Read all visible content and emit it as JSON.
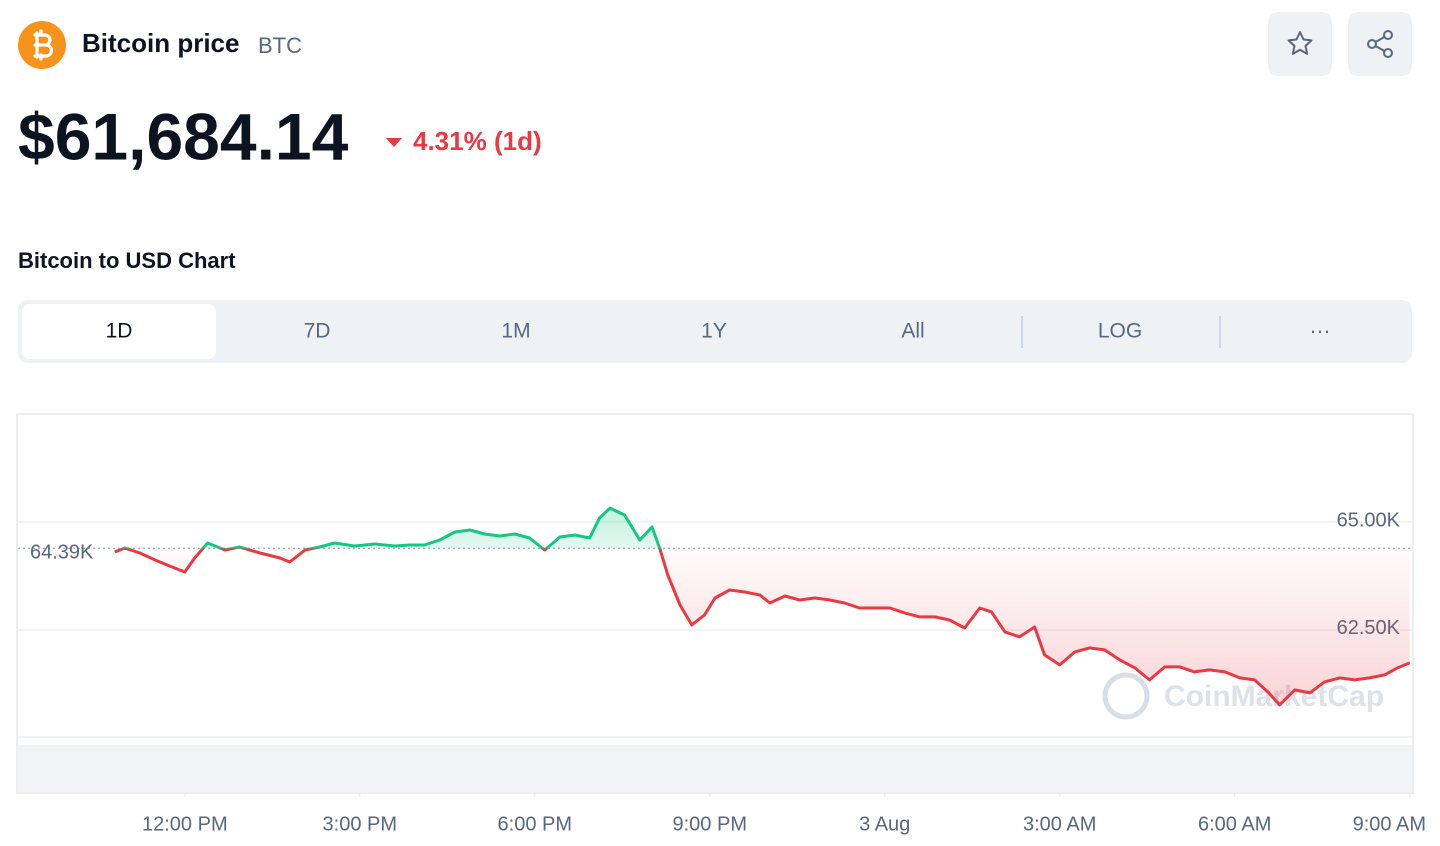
{
  "header": {
    "name": "Bitcoin price",
    "symbol": "BTC",
    "price": "$61,684.14",
    "change": "4.31% (1d)"
  },
  "chart_heading": "Bitcoin to USD Chart",
  "tabs": [
    "1D",
    "7D",
    "1M",
    "1Y",
    "All",
    "LOG",
    "···"
  ],
  "chart_data": {
    "type": "line",
    "watermark": "CoinMarketCap",
    "x": [
      10.8,
      10.97,
      11.23,
      11.49,
      11.74,
      12.0,
      12.17,
      12.39,
      12.69,
      12.94,
      13.29,
      13.63,
      13.8,
      14.06,
      14.31,
      14.57,
      14.91,
      15.26,
      15.6,
      15.86,
      16.11,
      16.37,
      16.63,
      16.89,
      17.14,
      17.4,
      17.66,
      17.91,
      18.17,
      18.43,
      18.69,
      18.94,
      19.11,
      19.29,
      19.54,
      19.8,
      20.01,
      20.14,
      20.28,
      20.49,
      20.69,
      20.91,
      21.09,
      21.34,
      21.6,
      21.86,
      22.03,
      22.29,
      22.54,
      22.8,
      23.06,
      23.31,
      23.57,
      23.83,
      24.09,
      24.34,
      24.6,
      24.86,
      25.11,
      25.37,
      25.63,
      25.83,
      26.06,
      26.31,
      26.57,
      26.74,
      27.0,
      27.26,
      27.51,
      27.77,
      28.03,
      28.29,
      28.54,
      28.8,
      29.06,
      29.31,
      29.57,
      29.83,
      30.09,
      30.34,
      30.57,
      30.77,
      31.03,
      31.29,
      31.54,
      31.8,
      32.06,
      32.31,
      32.57,
      32.79,
      33.0
    ],
    "values": [
      64306,
      64398,
      64282,
      64120,
      63981,
      63843,
      64167,
      64514,
      64352,
      64421,
      64282,
      64167,
      64074,
      64352,
      64421,
      64514,
      64444,
      64491,
      64444,
      64468,
      64468,
      64583,
      64769,
      64815,
      64722,
      64676,
      64722,
      64630,
      64352,
      64653,
      64699,
      64630,
      65093,
      65324,
      65162,
      64583,
      64884,
      64398,
      63773,
      63079,
      62616,
      62847,
      63241,
      63426,
      63380,
      63310,
      63125,
      63287,
      63194,
      63241,
      63194,
      63125,
      63009,
      63009,
      63009,
      62894,
      62801,
      62801,
      62731,
      62546,
      63009,
      62917,
      62454,
      62338,
      62569,
      61921,
      61690,
      61991,
      62083,
      62037,
      61806,
      61620,
      61343,
      61644,
      61644,
      61528,
      61574,
      61528,
      61389,
      61343,
      61065,
      60764,
      61111,
      61042,
      61296,
      61389,
      61343,
      61389,
      61458,
      61620,
      61736
    ],
    "colors": {
      "above": "#16c784",
      "below": "#ea3943"
    },
    "reference": {
      "value": 64390,
      "label": "64.39K"
    },
    "xlim": [
      9.14,
      33.04
    ],
    "xticks": [
      {
        "value": 12,
        "label": "12:00 PM"
      },
      {
        "value": 15,
        "label": "3:00 PM"
      },
      {
        "value": 18,
        "label": "6:00 PM"
      },
      {
        "value": 21,
        "label": "9:00 PM"
      },
      {
        "value": 24,
        "label": "3 Aug"
      },
      {
        "value": 27,
        "label": "3:00 AM"
      },
      {
        "value": 30,
        "label": "6:00 AM"
      },
      {
        "value": 33,
        "label": "9:00 AM"
      }
    ],
    "ylim": [
      59950,
      67480
    ],
    "yticks": [
      {
        "value": 62500,
        "label": "62.50K"
      },
      {
        "value": 65000,
        "label": "65.00K"
      }
    ],
    "grid": true
  }
}
